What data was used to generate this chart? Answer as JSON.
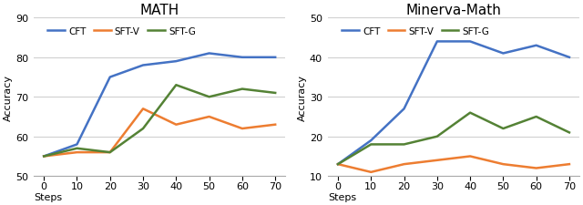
{
  "steps": [
    0,
    10,
    20,
    30,
    40,
    50,
    60,
    70
  ],
  "math": {
    "title": "MATH",
    "ylabel": "Accuracy",
    "ylim": [
      50,
      90
    ],
    "yticks": [
      50,
      60,
      70,
      80,
      90
    ],
    "CFT": [
      55,
      58,
      75,
      78,
      79,
      81,
      80,
      80
    ],
    "SFT-V": [
      55,
      56,
      56,
      67,
      63,
      65,
      62,
      63
    ],
    "SFT-G": [
      55,
      57,
      56,
      62,
      73,
      70,
      72,
      71
    ]
  },
  "minerva": {
    "title": "Minerva-Math",
    "ylabel": "Accuracy",
    "ylim": [
      10,
      50
    ],
    "yticks": [
      10,
      20,
      30,
      40,
      50
    ],
    "CFT": [
      13,
      19,
      27,
      44,
      44,
      41,
      43,
      40
    ],
    "SFT-V": [
      13,
      11,
      13,
      14,
      15,
      13,
      12,
      13
    ],
    "SFT-G": [
      13,
      18,
      18,
      20,
      26,
      22,
      25,
      21
    ]
  },
  "colors": {
    "CFT": "#4472C4",
    "SFT-V": "#ED7D31",
    "SFT-G": "#548235"
  },
  "line_width": 1.8,
  "background_color": "#ffffff",
  "grid_color": "#d0d0d0"
}
